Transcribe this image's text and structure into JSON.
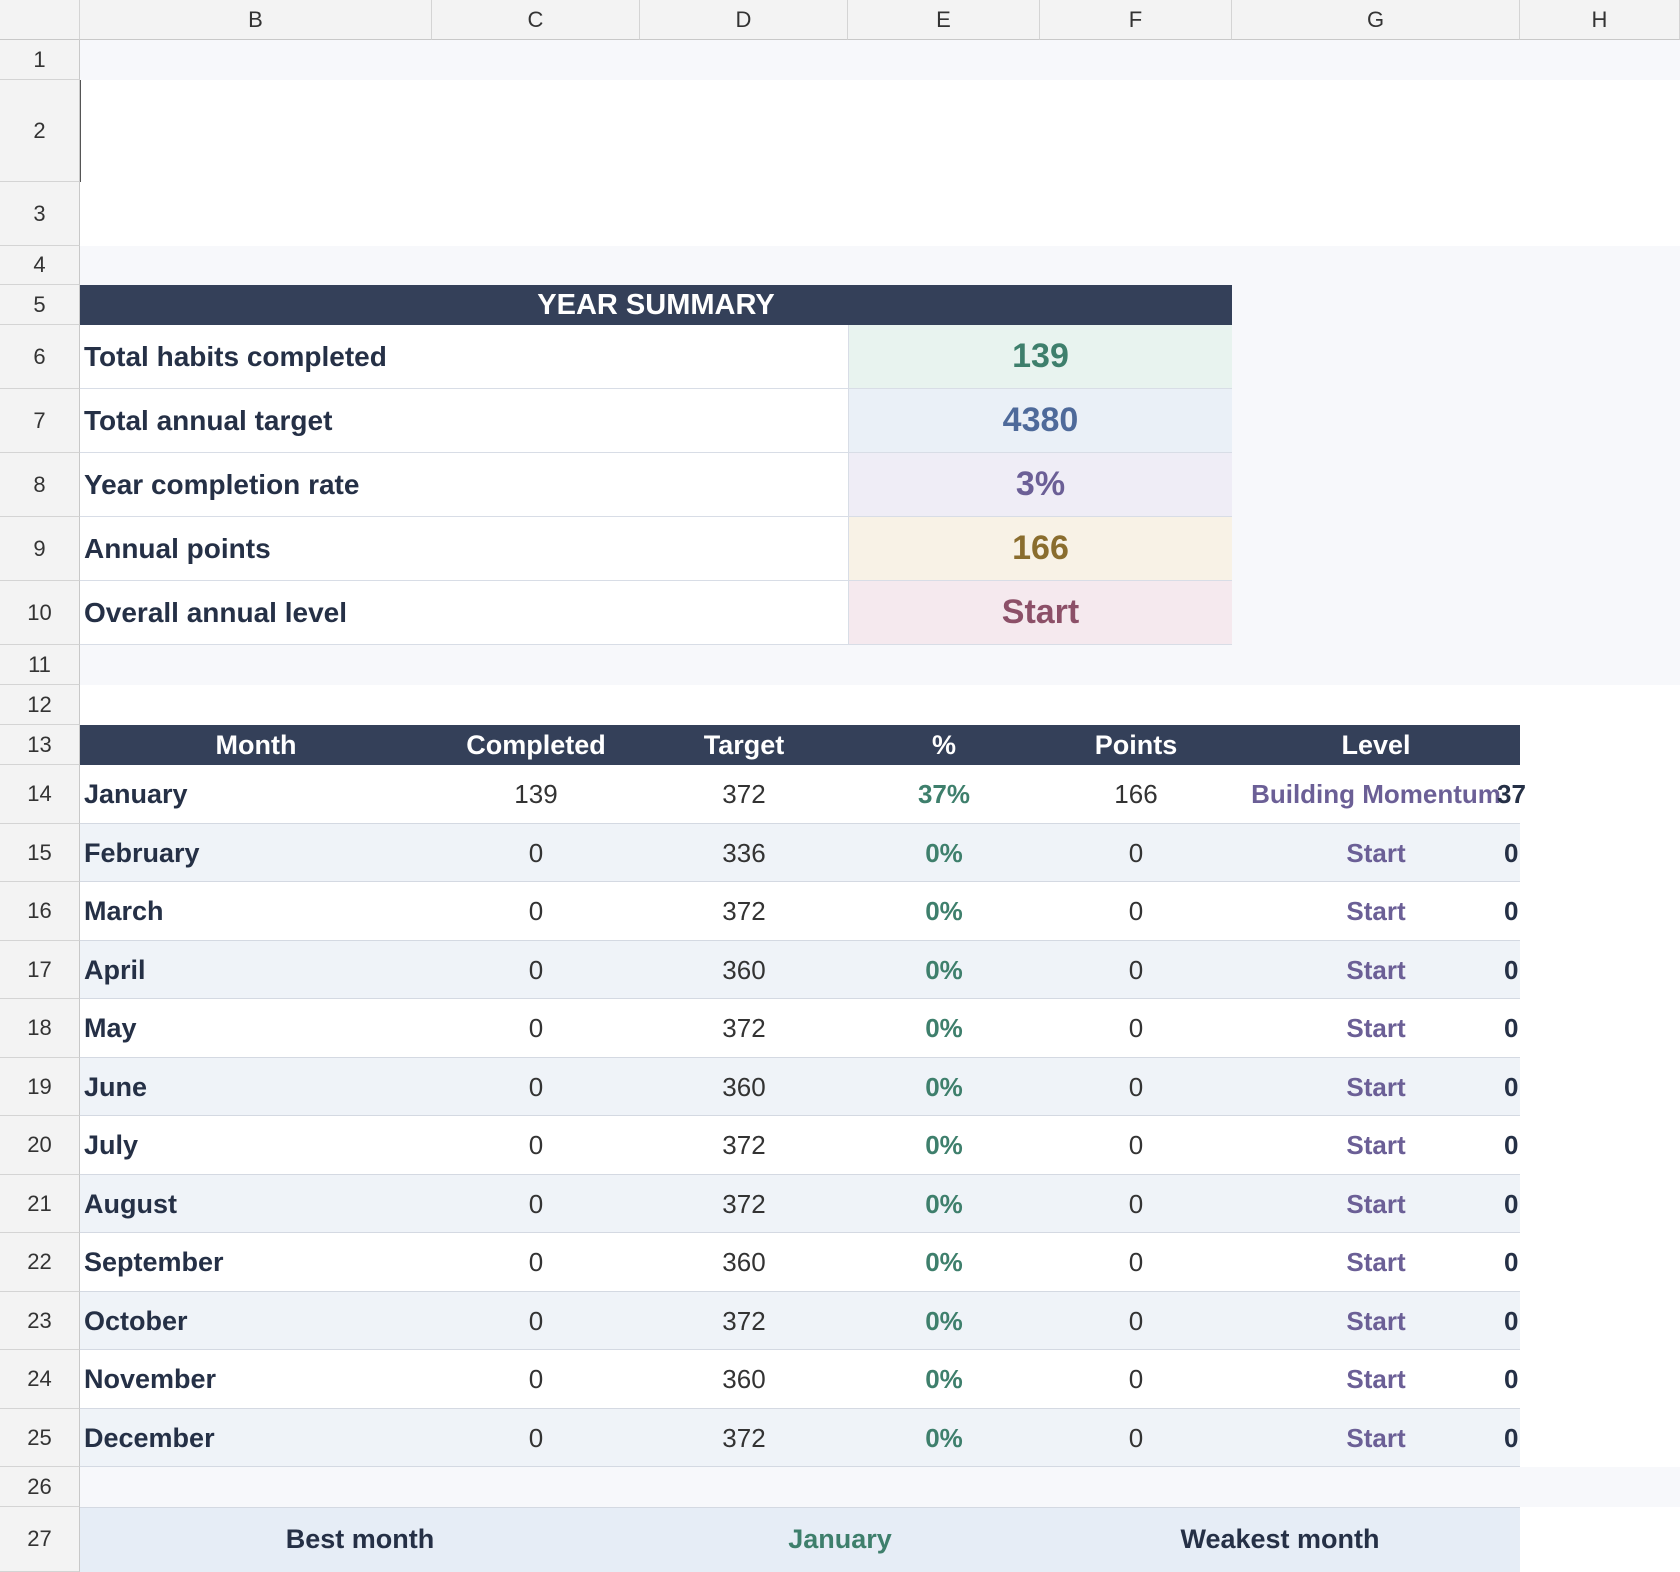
{
  "columns": [
    "B",
    "C",
    "D",
    "E",
    "F",
    "G",
    "H"
  ],
  "rows": [
    "1",
    "2",
    "3",
    "4",
    "5",
    "6",
    "7",
    "8",
    "9",
    "10",
    "11",
    "12",
    "13",
    "14",
    "15",
    "16",
    "17",
    "18",
    "19",
    "20",
    "21",
    "22",
    "23",
    "24",
    "25",
    "26",
    "27"
  ],
  "summary": {
    "title": "YEAR SUMMARY",
    "items": [
      {
        "label": "Total habits completed",
        "value": "139",
        "color": "#3e7f6c",
        "bg": "#e8f3ef"
      },
      {
        "label": "Total annual target",
        "value": "4380",
        "color": "#4e6a9a",
        "bg": "#eaf0f7"
      },
      {
        "label": "Year completion rate",
        "value": "3%",
        "color": "#6b5f96",
        "bg": "#efedf6"
      },
      {
        "label": "Annual points",
        "value": "166",
        "color": "#8a6d2e",
        "bg": "#f8f2e6"
      },
      {
        "label": "Overall annual level",
        "value": "Start",
        "color": "#8c5068",
        "bg": "#f5e9ee"
      }
    ]
  },
  "table": {
    "headers": [
      "Month",
      "Completed",
      "Target",
      "%",
      "Points",
      "Level"
    ],
    "rows": [
      {
        "month": "January",
        "completed": "139",
        "target": "372",
        "pct": "37%",
        "points": "166",
        "level": "Building Momentum",
        "h": "37"
      },
      {
        "month": "February",
        "completed": "0",
        "target": "336",
        "pct": "0%",
        "points": "0",
        "level": "Start",
        "h": "0"
      },
      {
        "month": "March",
        "completed": "0",
        "target": "372",
        "pct": "0%",
        "points": "0",
        "level": "Start",
        "h": "0"
      },
      {
        "month": "April",
        "completed": "0",
        "target": "360",
        "pct": "0%",
        "points": "0",
        "level": "Start",
        "h": "0"
      },
      {
        "month": "May",
        "completed": "0",
        "target": "372",
        "pct": "0%",
        "points": "0",
        "level": "Start",
        "h": "0"
      },
      {
        "month": "June",
        "completed": "0",
        "target": "360",
        "pct": "0%",
        "points": "0",
        "level": "Start",
        "h": "0"
      },
      {
        "month": "July",
        "completed": "0",
        "target": "372",
        "pct": "0%",
        "points": "0",
        "level": "Start",
        "h": "0"
      },
      {
        "month": "August",
        "completed": "0",
        "target": "372",
        "pct": "0%",
        "points": "0",
        "level": "Start",
        "h": "0"
      },
      {
        "month": "September",
        "completed": "0",
        "target": "360",
        "pct": "0%",
        "points": "0",
        "level": "Start",
        "h": "0"
      },
      {
        "month": "October",
        "completed": "0",
        "target": "372",
        "pct": "0%",
        "points": "0",
        "level": "Start",
        "h": "0"
      },
      {
        "month": "November",
        "completed": "0",
        "target": "360",
        "pct": "0%",
        "points": "0",
        "level": "Start",
        "h": "0"
      },
      {
        "month": "December",
        "completed": "0",
        "target": "372",
        "pct": "0%",
        "points": "0",
        "level": "Start",
        "h": "0"
      }
    ]
  },
  "footer": {
    "best_label": "Best month",
    "best_value": "January",
    "weakest_label": "Weakest month"
  }
}
